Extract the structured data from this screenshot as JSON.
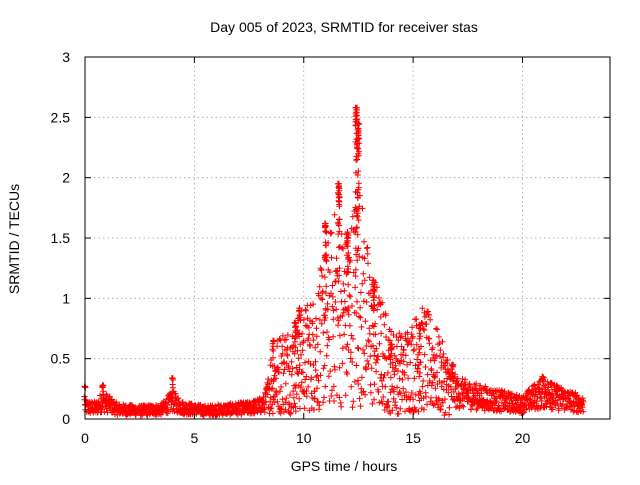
{
  "chart_data": {
    "type": "scatter",
    "title": "Day 005 of 2023, SRMTID for receiver stas",
    "xlabel": "GPS time / hours",
    "ylabel": "SRMTID / TECUs",
    "xlim": [
      0,
      24
    ],
    "ylim": [
      0,
      3
    ],
    "xticks": [
      0,
      5,
      10,
      15,
      20
    ],
    "yticks": [
      0,
      0.5,
      1,
      1.5,
      2,
      2.5,
      3
    ],
    "xtick_labels": [
      "0",
      "5",
      "10",
      "15",
      "20"
    ],
    "ytick_labels": [
      "0",
      "0.5",
      "1",
      "1.5",
      "2",
      "2.5",
      "3"
    ],
    "grid": true,
    "marker": "+",
    "color": "#ff0000",
    "series": [
      {
        "name": "SRMTID",
        "profile": {
          "x": [
            0,
            0.5,
            0.8,
            1.5,
            2.5,
            3.5,
            4.0,
            4.5,
            5.5,
            6.5,
            7.5,
            8.2,
            8.5,
            9.0,
            9.5,
            10.0,
            10.5,
            11.0,
            11.5,
            12.0,
            12.5,
            13.0,
            13.5,
            14.0,
            14.5,
            15.0,
            15.5,
            16.0,
            16.5,
            17.0,
            18.0,
            19.0,
            20.0,
            20.5,
            21.0,
            21.5,
            22.0,
            22.8
          ],
          "y": [
            0.1,
            0.09,
            0.15,
            0.08,
            0.07,
            0.08,
            0.15,
            0.09,
            0.07,
            0.08,
            0.09,
            0.12,
            0.3,
            0.4,
            0.42,
            0.5,
            0.55,
            0.75,
            0.95,
            0.8,
            1.1,
            0.7,
            0.55,
            0.4,
            0.38,
            0.45,
            0.5,
            0.42,
            0.3,
            0.22,
            0.18,
            0.15,
            0.12,
            0.18,
            0.22,
            0.18,
            0.16,
            0.12
          ]
        },
        "peaks": [
          {
            "x": 0.0,
            "y": 0.27
          },
          {
            "x": 0.8,
            "y": 0.28
          },
          {
            "x": 4.0,
            "y": 0.34
          },
          {
            "x": 8.6,
            "y": 0.65
          },
          {
            "x": 9.6,
            "y": 0.8
          },
          {
            "x": 9.8,
            "y": 0.92
          },
          {
            "x": 11.0,
            "y": 1.62
          },
          {
            "x": 11.6,
            "y": 1.95
          },
          {
            "x": 12.0,
            "y": 1.55
          },
          {
            "x": 12.4,
            "y": 2.58
          },
          {
            "x": 12.5,
            "y": 2.45
          },
          {
            "x": 13.2,
            "y": 1.15
          },
          {
            "x": 14.0,
            "y": 0.62
          },
          {
            "x": 15.3,
            "y": 0.78
          },
          {
            "x": 16.8,
            "y": 0.45
          },
          {
            "x": 20.9,
            "y": 0.35
          },
          {
            "x": 21.3,
            "y": 0.3
          }
        ]
      }
    ]
  }
}
